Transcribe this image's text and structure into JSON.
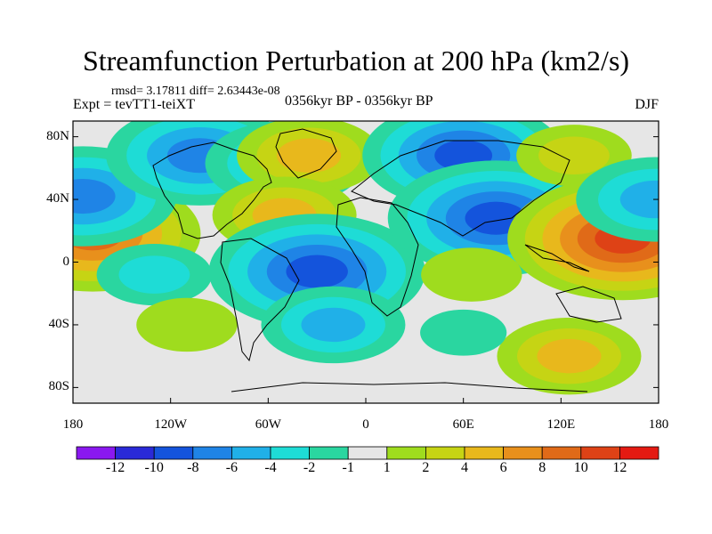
{
  "title": "Streamfunction Perturbation at 200 hPa (km2/s)",
  "stats": "rmsd= 3.17811  diff= 2.63443e-08",
  "left_label": "Expt = tevTT1-teiXT",
  "center_label": "0356kyr BP - 0356kyr BP",
  "right_label": "DJF",
  "lat_ticks": [
    {
      "label": "80N",
      "value": 80
    },
    {
      "label": "40N",
      "value": 40
    },
    {
      "label": "0",
      "value": 0
    },
    {
      "label": "40S",
      "value": -40
    },
    {
      "label": "80S",
      "value": -80
    }
  ],
  "lon_ticks": [
    {
      "label": "180",
      "value": -180
    },
    {
      "label": "120W",
      "value": -120
    },
    {
      "label": "60W",
      "value": -60
    },
    {
      "label": "0",
      "value": 0
    },
    {
      "label": "60E",
      "value": 60
    },
    {
      "label": "120E",
      "value": 120
    },
    {
      "label": "180",
      "value": 180
    }
  ],
  "colorbar": {
    "levels": [
      "-12",
      "-10",
      "-8",
      "-6",
      "-4",
      "-2",
      "-1",
      "1",
      "2",
      "4",
      "6",
      "8",
      "10",
      "12"
    ],
    "colors": [
      "#8a18f0",
      "#2a2ad8",
      "#1454dc",
      "#1f84e6",
      "#20b0e8",
      "#1edcd6",
      "#2ad6a0",
      "#e6e6e6",
      "#9fdc1e",
      "#c6d414",
      "#e8b81c",
      "#e8901c",
      "#e06a18",
      "#de4216",
      "#e41a12"
    ]
  },
  "chart_data": {
    "type": "heatmap",
    "title": "Streamfunction Perturbation at 200 hPa (km2/s)",
    "units": "km2/s",
    "season": "DJF",
    "xlim": [
      -180,
      180
    ],
    "ylim": [
      -90,
      90
    ],
    "anomaly_centers": [
      {
        "lon": -168,
        "lat": 18,
        "value": 10
      },
      {
        "lon": -174,
        "lat": 42,
        "value": -8
      },
      {
        "lon": -102,
        "lat": 68,
        "value": -8
      },
      {
        "lon": -50,
        "lat": 63,
        "value": -6
      },
      {
        "lon": -35,
        "lat": 68,
        "value": 5
      },
      {
        "lon": -50,
        "lat": 30,
        "value": 5
      },
      {
        "lon": -30,
        "lat": -6,
        "value": -10
      },
      {
        "lon": -20,
        "lat": -40,
        "value": -5
      },
      {
        "lon": -130,
        "lat": -8,
        "value": -3
      },
      {
        "lon": -110,
        "lat": -40,
        "value": 2
      },
      {
        "lon": 60,
        "lat": 68,
        "value": -9
      },
      {
        "lon": 80,
        "lat": 28,
        "value": -10
      },
      {
        "lon": 128,
        "lat": 68,
        "value": 3
      },
      {
        "lon": 158,
        "lat": 15,
        "value": 11
      },
      {
        "lon": 125,
        "lat": -60,
        "value": 5
      },
      {
        "lon": 65,
        "lat": -8,
        "value": 2
      },
      {
        "lon": 60,
        "lat": -45,
        "value": -1
      },
      {
        "lon": 178,
        "lat": 40,
        "value": -6
      }
    ]
  }
}
